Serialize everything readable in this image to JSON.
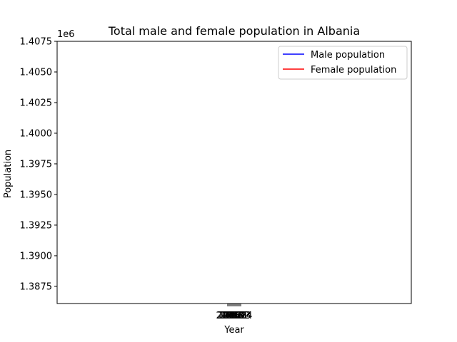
{
  "chart_data": {
    "type": "line",
    "title": "Total male and female population in Albania",
    "xlabel": "Year",
    "ylabel": "Population",
    "y_offset_label": "1e6",
    "ylim": [
      1386100,
      1407500
    ],
    "yticks": [
      "1.3875",
      "1.3900",
      "1.3925",
      "1.3950",
      "1.3975",
      "1.4000",
      "1.4025",
      "1.4050",
      "1.4075"
    ],
    "ytick_values": [
      1387500,
      1390000,
      1392500,
      1395000,
      1397500,
      1400000,
      1402500,
      1405000,
      1407500
    ],
    "x_tick_labels": [
      "2015",
      "2016",
      "2017",
      "2018",
      "2019",
      "2020",
      "2021",
      "2022",
      "2023",
      "2024"
    ],
    "legend_position": "upper right",
    "grid": false,
    "series": [
      {
        "name": "Male population",
        "color": "#0000ff",
        "values": []
      },
      {
        "name": "Female population",
        "color": "#ff0000",
        "values": []
      }
    ]
  }
}
